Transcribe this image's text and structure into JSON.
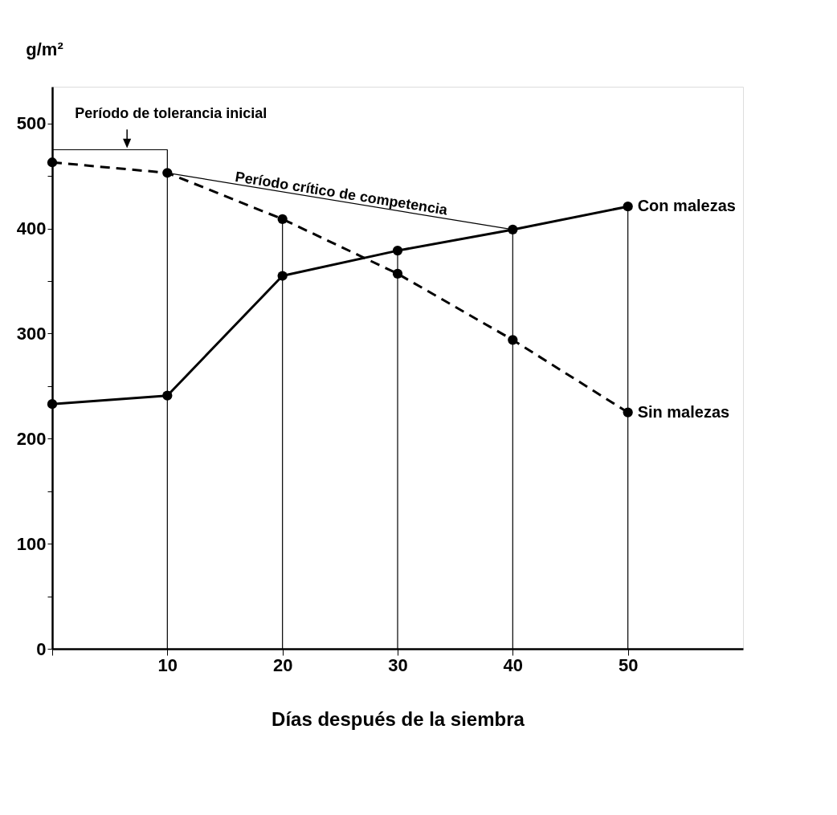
{
  "chart_data": {
    "type": "line",
    "xlabel": "Días después de la siembra",
    "ylabel": "g/m²",
    "x": [
      0,
      10,
      20,
      30,
      40,
      50
    ],
    "series": [
      {
        "name": "Con malezas",
        "color": "#000000",
        "line_style": "solid",
        "values": [
          233,
          241,
          355,
          379,
          399,
          421
        ]
      },
      {
        "name": "Sin malezas",
        "color": "#000000",
        "line_style": "dashed",
        "values": [
          463,
          453,
          409,
          357,
          294,
          225
        ]
      },
      {
        "color": "#000000",
        "line_style": "solid",
        "marker": "none",
        "x": [
          0,
          10,
          10
        ],
        "values": [
          475,
          475,
          453
        ]
      },
      {
        "color": "#000000",
        "line_style": "solid",
        "marker": "none",
        "x": [
          10,
          40
        ],
        "values": [
          453,
          399
        ]
      }
    ],
    "marker": "circle",
    "legend": false,
    "grid": "x",
    "xlim": [
      0,
      60
    ],
    "xticks": [
      {
        "value": 0,
        "label": null
      },
      10,
      20,
      30,
      40,
      50
    ],
    "ylim": [
      0,
      535
    ],
    "yticks": [
      0,
      {
        "value": 50,
        "label": null
      },
      100,
      {
        "value": 150,
        "label": null
      },
      200,
      {
        "value": 250,
        "label": null
      },
      300,
      {
        "value": 350,
        "label": null
      },
      400,
      {
        "value": 450,
        "label": null
      },
      500
    ],
    "annotations": [
      {
        "text": "Período de tolerancia inicial",
        "x": 6.5,
        "y": 475
      },
      {
        "text": "Período crítico de competencia",
        "x": 25,
        "y": 426
      }
    ]
  }
}
